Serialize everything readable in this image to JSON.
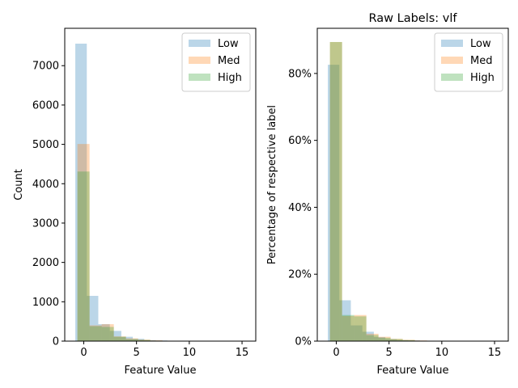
{
  "chart_data": [
    {
      "type": "histogram",
      "title": "",
      "xlabel": "Feature Value",
      "ylabel": "Count",
      "xlim": [
        -1.8,
        16.3
      ],
      "ylim": [
        0,
        7950
      ],
      "xticks": [
        0,
        5,
        10,
        15
      ],
      "xtick_labels": [
        "0",
        "5",
        "10",
        "15"
      ],
      "yticks": [
        0,
        1000,
        2000,
        3000,
        4000,
        5000,
        6000,
        7000
      ],
      "ytick_labels": [
        "0",
        "1000",
        "2000",
        "3000",
        "4000",
        "5000",
        "6000",
        "7000"
      ],
      "grid": false,
      "legend_position": "upper right",
      "series": [
        {
          "name": "Low",
          "color": "#1f77b4",
          "bins": [
            [
              -0.8,
              0.29
            ],
            [
              0.29,
              1.38
            ],
            [
              1.38,
              2.47
            ],
            [
              2.47,
              3.56
            ],
            [
              3.56,
              4.65
            ],
            [
              4.65,
              5.74
            ],
            [
              5.74,
              6.83
            ],
            [
              6.83,
              7.92
            ],
            [
              7.92,
              9.01
            ],
            [
              9.01,
              10.1
            ],
            [
              10.1,
              15.5
            ]
          ],
          "values": [
            7560,
            1150,
            430,
            260,
            110,
            60,
            25,
            15,
            8,
            5,
            4
          ]
        },
        {
          "name": "Med",
          "color": "#ff7f0e",
          "bins": [
            [
              -0.6,
              0.55
            ],
            [
              0.55,
              1.7
            ],
            [
              1.7,
              2.85
            ],
            [
              2.85,
              4.0
            ],
            [
              4.0,
              5.15
            ],
            [
              5.15,
              6.3
            ],
            [
              6.3,
              7.45
            ],
            [
              7.45,
              8.6
            ],
            [
              8.6,
              9.75
            ]
          ],
          "values": [
            5010,
            400,
            430,
            120,
            70,
            40,
            20,
            8,
            4
          ]
        },
        {
          "name": "High",
          "color": "#2ca02c",
          "bins": [
            [
              -0.6,
              0.55
            ],
            [
              0.55,
              1.7
            ],
            [
              1.7,
              2.85
            ],
            [
              2.85,
              4.0
            ],
            [
              4.0,
              5.15
            ],
            [
              5.15,
              6.3
            ],
            [
              6.3,
              7.45
            ],
            [
              7.45,
              8.6
            ]
          ],
          "values": [
            4310,
            380,
            360,
            110,
            50,
            30,
            12,
            6
          ]
        }
      ]
    },
    {
      "type": "histogram",
      "title": "Raw Labels: vlf",
      "xlabel": "Feature Value",
      "ylabel": "Percentage of respective label",
      "xlim": [
        -1.8,
        16.3
      ],
      "ylim": [
        0,
        0.935
      ],
      "xticks": [
        0,
        5,
        10,
        15
      ],
      "xtick_labels": [
        "0",
        "5",
        "10",
        "15"
      ],
      "yticks": [
        0,
        0.2,
        0.4,
        0.6,
        0.8
      ],
      "ytick_labels": [
        "0%",
        "20%",
        "40%",
        "60%",
        "80%"
      ],
      "grid": false,
      "legend_position": "upper right",
      "series": [
        {
          "name": "Low",
          "color": "#1f77b4",
          "bins": [
            [
              -0.8,
              0.29
            ],
            [
              0.29,
              1.38
            ],
            [
              1.38,
              2.47
            ],
            [
              2.47,
              3.56
            ],
            [
              3.56,
              4.65
            ],
            [
              4.65,
              5.74
            ],
            [
              5.74,
              6.83
            ],
            [
              6.83,
              7.92
            ],
            [
              7.92,
              9.01
            ],
            [
              9.01,
              10.1
            ],
            [
              10.1,
              15.5
            ]
          ],
          "values": [
            0.826,
            0.122,
            0.047,
            0.028,
            0.012,
            0.006,
            0.003,
            0.002,
            0.001,
            0.001,
            0.0005
          ]
        },
        {
          "name": "Med",
          "color": "#ff7f0e",
          "bins": [
            [
              -0.6,
              0.55
            ],
            [
              0.55,
              1.7
            ],
            [
              1.7,
              2.85
            ],
            [
              2.85,
              4.0
            ],
            [
              4.0,
              5.15
            ],
            [
              5.15,
              6.3
            ],
            [
              6.3,
              7.45
            ],
            [
              7.45,
              8.6
            ],
            [
              8.6,
              9.75
            ]
          ],
          "values": [
            0.894,
            0.075,
            0.078,
            0.022,
            0.013,
            0.007,
            0.004,
            0.002,
            0.001
          ]
        },
        {
          "name": "High",
          "color": "#2ca02c",
          "bins": [
            [
              -0.6,
              0.55
            ],
            [
              0.55,
              1.7
            ],
            [
              1.7,
              2.85
            ],
            [
              2.85,
              4.0
            ],
            [
              4.0,
              5.15
            ],
            [
              5.15,
              6.3
            ],
            [
              6.3,
              7.45
            ],
            [
              7.45,
              8.6
            ]
          ],
          "values": [
            0.894,
            0.078,
            0.074,
            0.018,
            0.01,
            0.006,
            0.003,
            0.001
          ]
        }
      ]
    }
  ]
}
